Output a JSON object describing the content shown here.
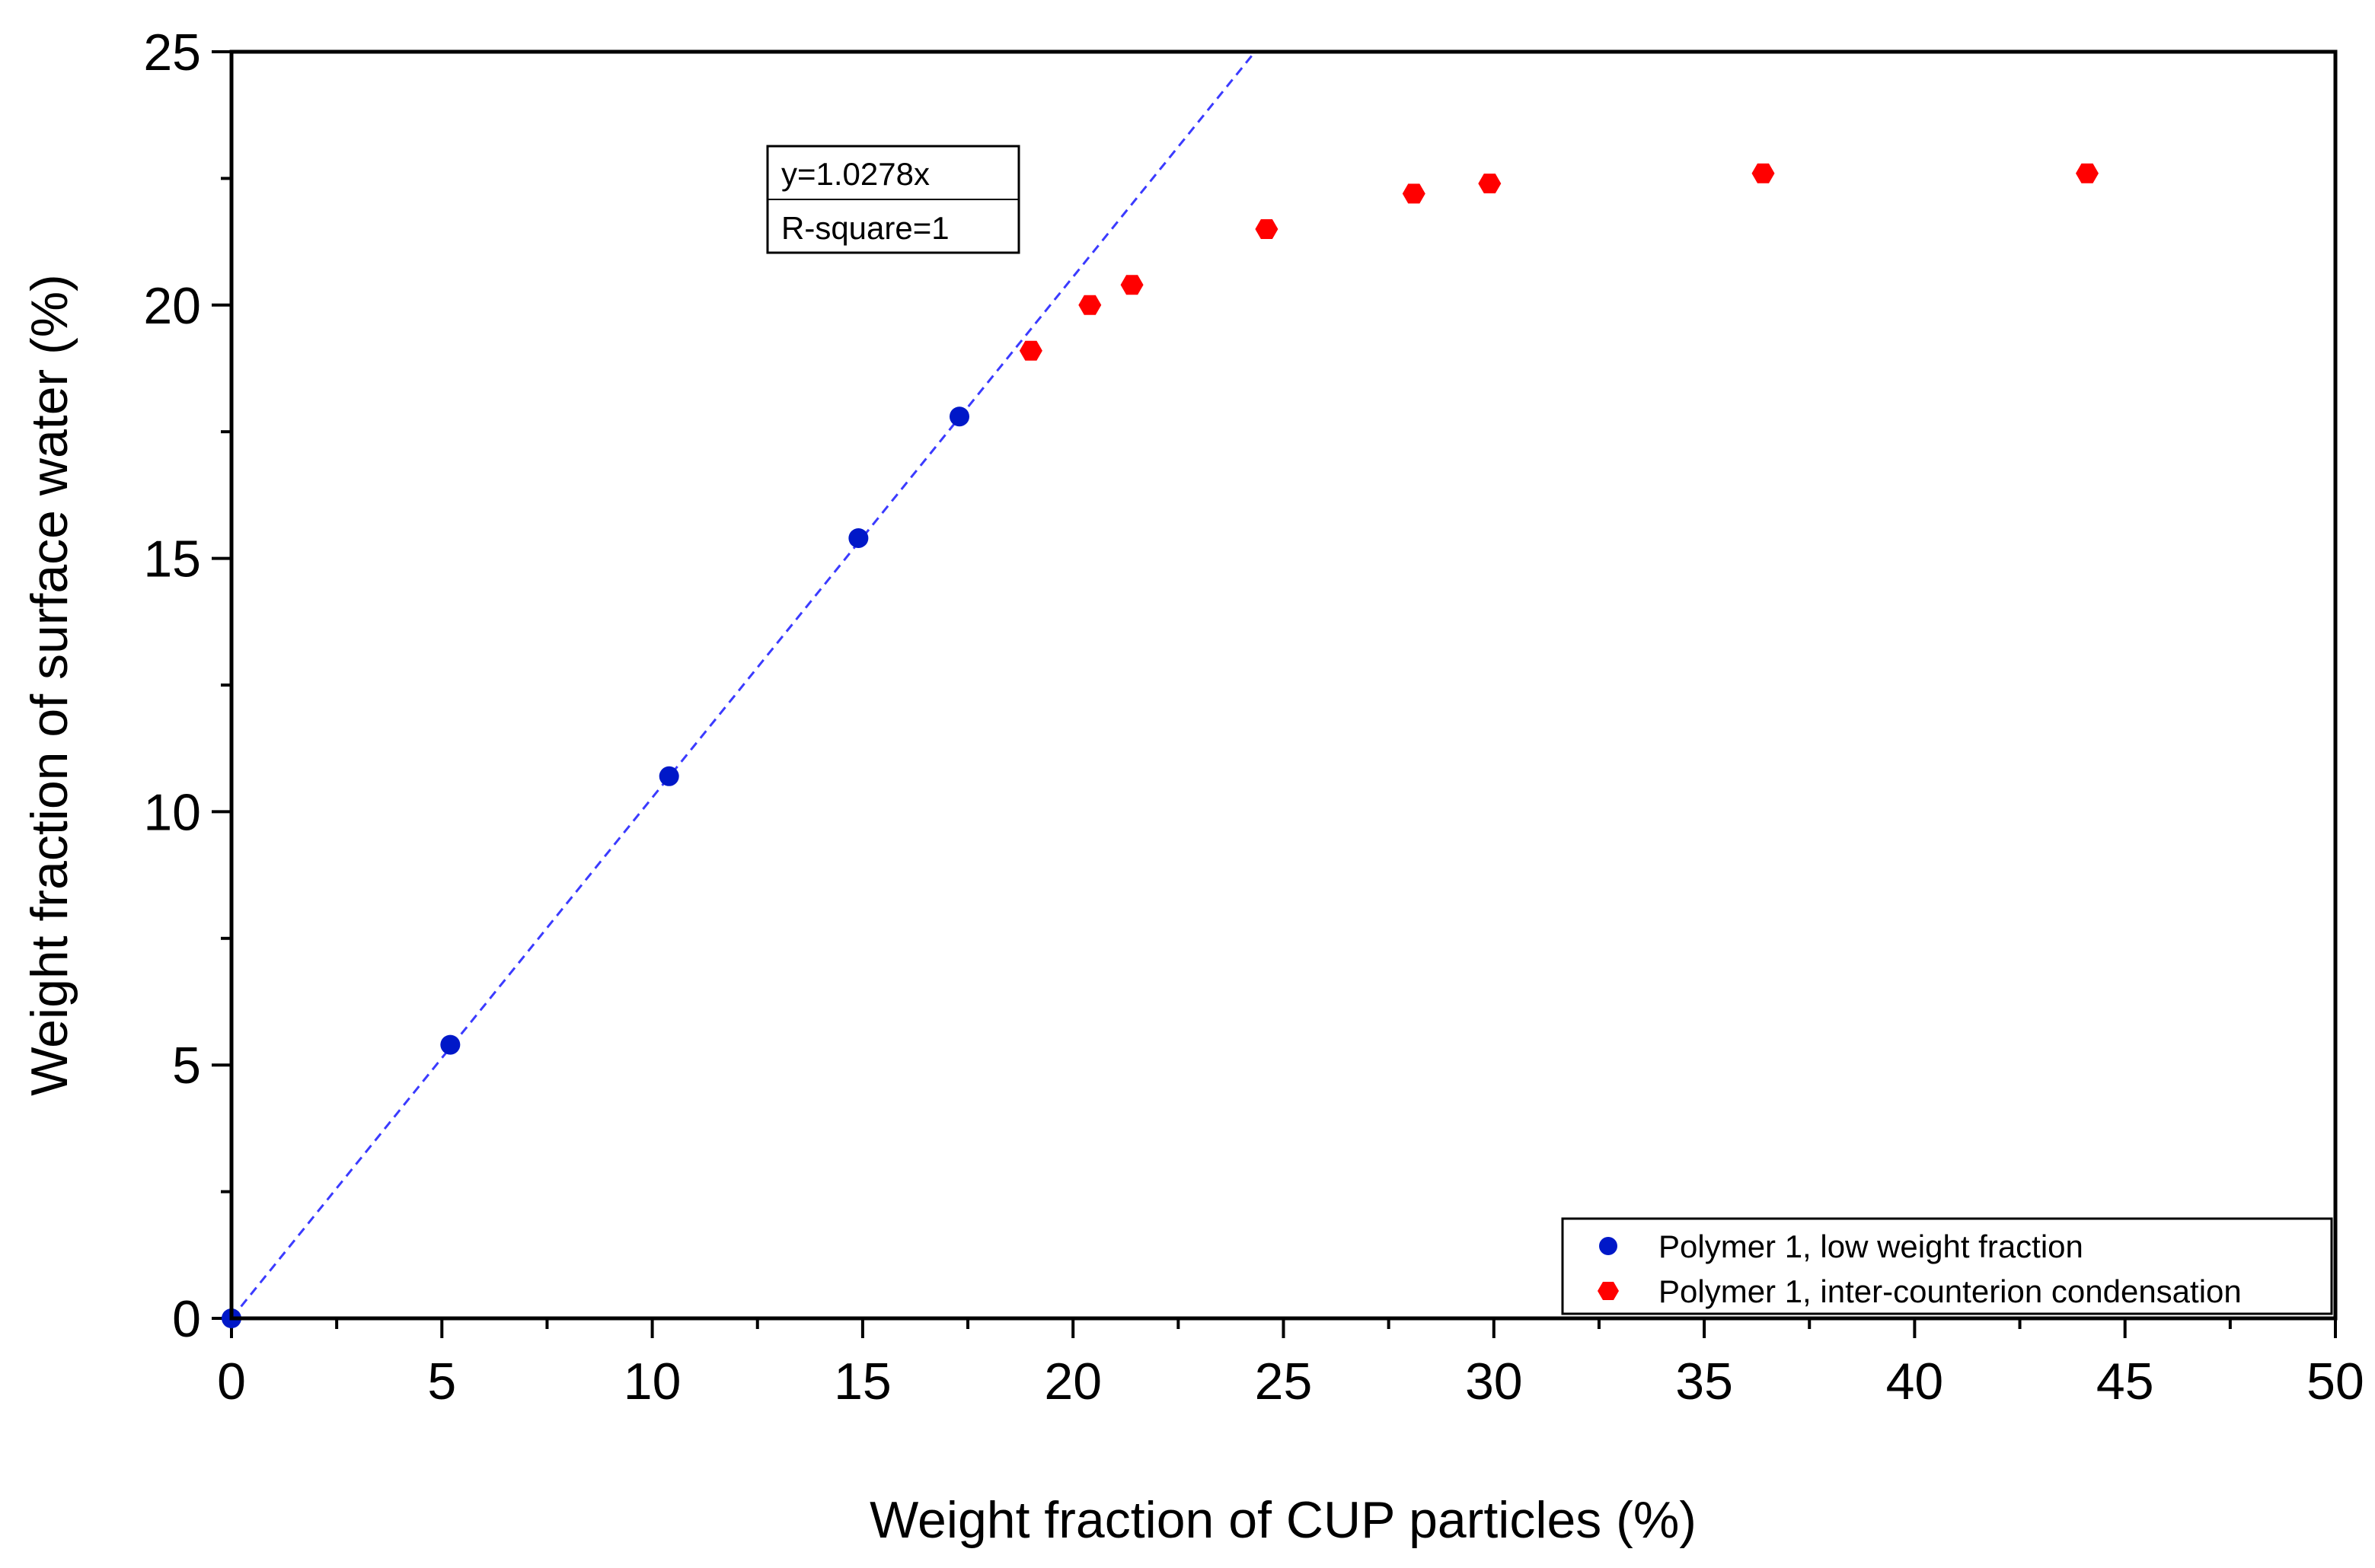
{
  "chart_data": {
    "type": "scatter",
    "title": "",
    "xlabel": "Weight fraction of CUP particles (%)",
    "ylabel": "Weight fraction of surface water (%)",
    "xlim": [
      0,
      50
    ],
    "ylim": [
      0,
      25
    ],
    "x_ticks": [
      0,
      5,
      10,
      15,
      20,
      25,
      30,
      35,
      40,
      45,
      50
    ],
    "y_ticks": [
      0,
      5,
      10,
      15,
      20,
      25
    ],
    "x_minor_step": 2.5,
    "y_minor_step": 2.5,
    "grid": false,
    "legend_position": "bottom-right",
    "series": [
      {
        "name": "Polymer 1, low weight fraction",
        "color": "#0018c8",
        "marker": "circle",
        "x": [
          0,
          5.2,
          10.4,
          14.9,
          17.3
        ],
        "y": [
          0,
          5.4,
          10.7,
          15.4,
          17.8
        ]
      },
      {
        "name": "Polymer 1, inter-counterion condensation",
        "color": "#ff0000",
        "marker": "hexagon",
        "x": [
          19.0,
          20.4,
          21.4,
          24.6,
          28.1,
          29.9,
          36.4,
          44.1
        ],
        "y": [
          19.1,
          20.0,
          20.4,
          21.5,
          22.2,
          22.4,
          22.6,
          22.6
        ]
      }
    ],
    "fit_line": {
      "slope": 1.0278,
      "color": "#3b3bff",
      "style": "dashed",
      "equation_label": "y=1.0278x",
      "r_square_label": "R-square=1"
    }
  }
}
